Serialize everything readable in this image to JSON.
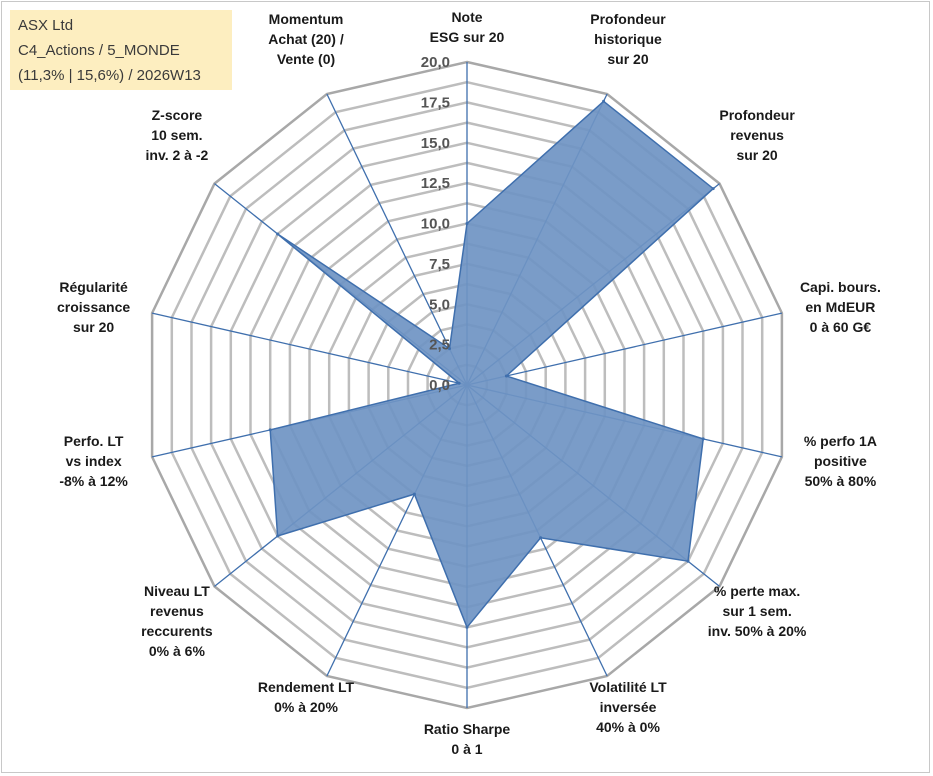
{
  "info": {
    "line1": "ASX Ltd",
    "line2": "C4_Actions / 5_MONDE",
    "line3": "(11,3% | 15,6%) / 2026W13"
  },
  "colors": {
    "fill": "#6f94c3",
    "stroke": "#3f6fad",
    "axis": "#3f6fad",
    "grid": "#bdbdbd",
    "grid_outer": "#a8a8a8"
  },
  "chart_data": {
    "type": "radar",
    "title": "",
    "rmin": 0,
    "rmax": 20,
    "ticks": [
      "0,0",
      "2,5",
      "5,0",
      "7,5",
      "10,0",
      "12,5",
      "15,0",
      "17,5",
      "20,0"
    ],
    "tick_values": [
      0,
      2.5,
      5,
      7.5,
      10,
      12.5,
      15,
      17.5,
      20
    ],
    "axes": [
      {
        "label": [
          "Note",
          "ESG sur 20"
        ],
        "value": 10.0
      },
      {
        "label": [
          "Profondeur",
          "historique",
          "sur 20"
        ],
        "value": 19.5
      },
      {
        "label": [
          "Profondeur",
          "revenus",
          "sur 20"
        ],
        "value": 19.5
      },
      {
        "label": [
          "Capi. bours.",
          "en MdEUR",
          "0 à 60 G€"
        ],
        "value": 2.5
      },
      {
        "label": [
          "% perfo 1A",
          "positive",
          "50% à 80%"
        ],
        "value": 15.0
      },
      {
        "label": [
          "% perte max.",
          "sur 1 sem.",
          "inv. 50% à 20%"
        ],
        "value": 17.5
      },
      {
        "label": [
          "Volatilité LT",
          "inversée",
          "40% à 0%"
        ],
        "value": 10.5
      },
      {
        "label": [
          "Ratio Sharpe",
          "0 à 1"
        ],
        "value": 15.0
      },
      {
        "label": [
          "Rendement LT",
          "0% à 20%"
        ],
        "value": 7.5
      },
      {
        "label": [
          "Niveau LT",
          "revenus",
          "reccurents",
          "0% à 6%"
        ],
        "value": 15.0
      },
      {
        "label": [
          "Perfo. LT",
          "vs index",
          "-8% à 12%"
        ],
        "value": 12.5
      },
      {
        "label": [
          "Régularité",
          "croissance",
          "sur 20"
        ],
        "value": 0.5
      },
      {
        "label": [
          "Z-score",
          "10 sem.",
          "inv. 2 à -2"
        ],
        "value": 15.0
      },
      {
        "label": [
          "Momentum",
          "Achat (20) /",
          "Vente (0)"
        ],
        "value": 2.5
      }
    ]
  }
}
